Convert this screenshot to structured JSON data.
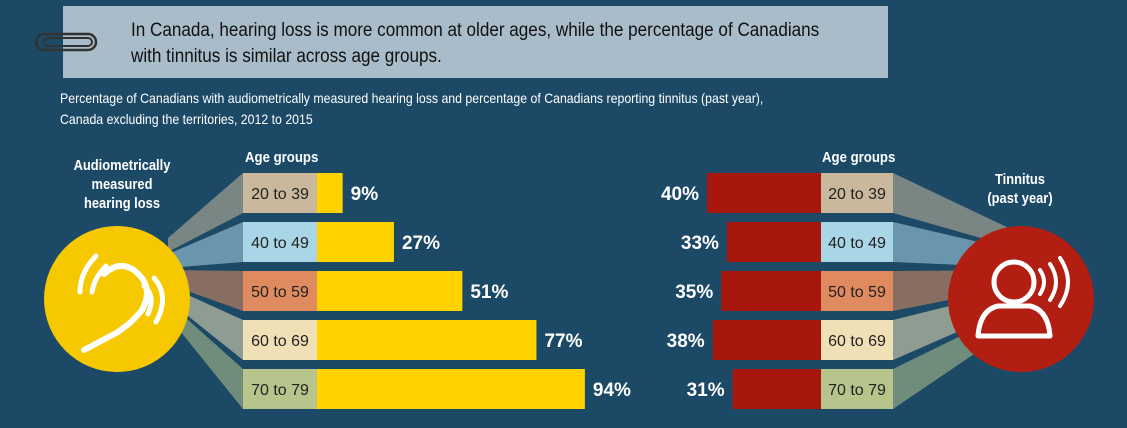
{
  "banner": {
    "line1": "In Canada, hearing loss is more common at older ages, while the percentage of Canadians",
    "line2": "with tinnitus is similar across age groups."
  },
  "subtitle": {
    "line1": "Percentage of Canadians with audiometrically measured hearing loss and percentage of Canadians reporting tinnitus (past year),",
    "line2": "Canada excluding the territories, 2012 to 2015"
  },
  "left_title": {
    "l1": "Audiometrically",
    "l2": "measured",
    "l3": "hearing loss"
  },
  "right_title": {
    "l1": "Tinnitus",
    "l2": "(past year)"
  },
  "icons": {
    "left": "hearing-aid-icon",
    "right": "person-listening-icon",
    "clip": "paperclip-icon"
  },
  "colors": {
    "background": "#1c4966",
    "hearing_bar": "#ffd200",
    "tinnitus_bar": "#a8170d",
    "age_band_colors": [
      "#c9b89b",
      "#a9d6e6",
      "#e08a5f",
      "#efe0b6",
      "#b7c58c"
    ]
  },
  "chart_data": {
    "type": "bar",
    "categories_label": "Age groups",
    "categories": [
      "20 to 39",
      "40 to 49",
      "50 to 59",
      "60 to 69",
      "70 to 79"
    ],
    "series": [
      {
        "name": "Audiometrically measured hearing loss",
        "values": [
          9,
          27,
          51,
          77,
          94
        ],
        "labels": [
          "9%",
          "27%",
          "51%",
          "77%",
          "94%"
        ]
      },
      {
        "name": "Tinnitus (past year)",
        "values": [
          40,
          33,
          35,
          38,
          31
        ],
        "labels": [
          "40%",
          "33%",
          "35%",
          "38%",
          "31%"
        ]
      }
    ]
  }
}
